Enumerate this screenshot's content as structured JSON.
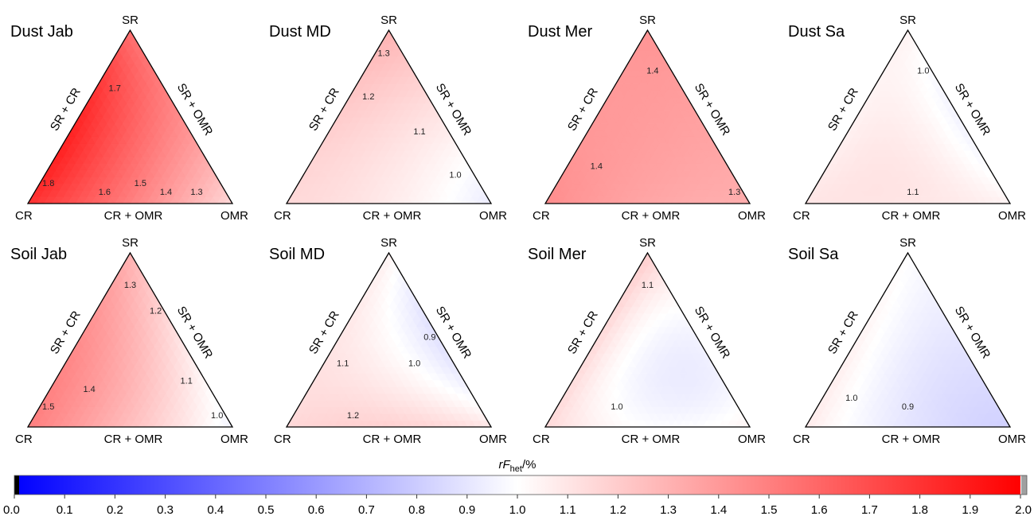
{
  "corner_labels": {
    "top": "SR",
    "left": "CR",
    "right": "OMR"
  },
  "edge_labels": {
    "left": "SR + CR",
    "right": "SR + OMR",
    "bottom": "CR + OMR"
  },
  "colorbar": {
    "title_italic": "rF",
    "title_sub": "het",
    "title_suffix": "/%",
    "ticks": [
      "0.0",
      "0.1",
      "0.2",
      "0.3",
      "0.4",
      "0.5",
      "0.6",
      "0.7",
      "0.8",
      "0.9",
      "1.0",
      "1.1",
      "1.2",
      "1.3",
      "1.4",
      "1.5",
      "1.6",
      "1.7",
      "1.8",
      "1.9",
      "2.0"
    ],
    "range": [
      0,
      2
    ],
    "colors": {
      "low": "#0000ff",
      "mid": "#ffffff",
      "high": "#ff0000",
      "under": "#000000",
      "over": "#a0a0a0"
    }
  },
  "chart_data": [
    {
      "type": "ternary-contour",
      "title": "Dust Jab",
      "values_at": {
        "SR": 1.55,
        "CR": 1.8,
        "OMR": 1.15,
        "SR+CR": 1.85,
        "SR+OMR": 1.45,
        "CR+OMR": 1.5,
        "center": 1.6
      },
      "contour_labels": [
        "1.8",
        "1.6",
        "1.7",
        "1.4",
        "1.5",
        "1.3"
      ]
    },
    {
      "type": "ternary-contour",
      "title": "Dust MD",
      "values_at": {
        "SR": 1.3,
        "CR": 1.15,
        "OMR": 0.92,
        "SR+CR": 1.2,
        "SR+OMR": 1.1,
        "CR+OMR": 1.08,
        "center": 1.12
      },
      "contour_labels": [
        "1.3",
        "1.2",
        "1.1",
        "1.0"
      ]
    },
    {
      "type": "ternary-contour",
      "title": "Dust Mer",
      "values_at": {
        "SR": 1.42,
        "CR": 1.45,
        "OMR": 1.32,
        "SR+CR": 1.4,
        "SR+OMR": 1.37,
        "CR+OMR": 1.35,
        "center": 1.38
      },
      "contour_labels": [
        "1.4",
        "1.4",
        "1.3"
      ]
    },
    {
      "type": "ternary-contour",
      "title": "Dust Sa",
      "values_at": {
        "SR": 1.05,
        "CR": 1.1,
        "OMR": 1.05,
        "SR+CR": 1.05,
        "SR+OMR": 0.95,
        "CR+OMR": 1.1,
        "center": 1.08
      },
      "contour_labels": [
        "1.0",
        "1.1"
      ]
    },
    {
      "type": "ternary-contour",
      "title": "Soil Jab",
      "values_at": {
        "SR": 1.3,
        "CR": 1.5,
        "OMR": 0.95,
        "SR+CR": 1.45,
        "SR+OMR": 1.1,
        "CR+OMR": 1.25,
        "center": 1.3
      },
      "contour_labels": [
        "1.4",
        "1.2",
        "1.5",
        "1.0",
        "1.1",
        "1.3"
      ]
    },
    {
      "type": "ternary-contour",
      "title": "Soil MD",
      "values_at": {
        "SR": 1.05,
        "CR": 1.15,
        "OMR": 1.1,
        "SR+CR": 1.1,
        "SR+OMR": 0.88,
        "CR+OMR": 1.18,
        "center": 1.05
      },
      "contour_labels": [
        "1.0",
        "0.9",
        "1.1",
        "1.2"
      ]
    },
    {
      "type": "ternary-contour",
      "title": "Soil Mer",
      "values_at": {
        "SR": 1.2,
        "CR": 1.15,
        "OMR": 1.05,
        "SR+CR": 1.15,
        "SR+OMR": 0.95,
        "CR+OMR": 1.0,
        "center": 0.95
      },
      "contour_labels": [
        "1.1",
        "1.0"
      ]
    },
    {
      "type": "ternary-contour",
      "title": "Soil Sa",
      "values_at": {
        "SR": 1.0,
        "CR": 1.08,
        "OMR": 0.82,
        "SR+CR": 1.05,
        "SR+OMR": 0.9,
        "CR+OMR": 0.9,
        "center": 0.92
      },
      "contour_labels": [
        "1.0",
        "0.9"
      ]
    }
  ]
}
